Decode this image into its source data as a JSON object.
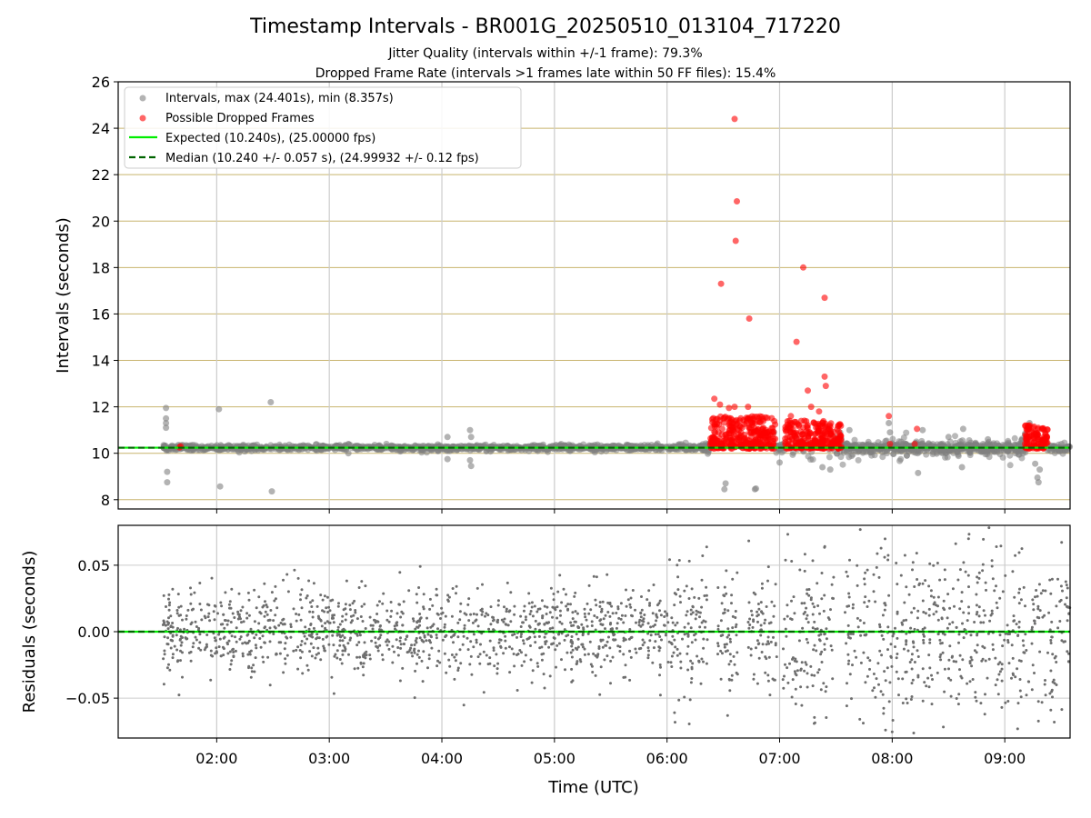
{
  "chart_data": {
    "type": "scatter",
    "title": "Timestamp Intervals - BR001G_20250510_013104_717220",
    "subtitle_lines": [
      "Jitter Quality (intervals within +/-1 frame): 79.3%",
      "Dropped Frame Rate (intervals >1 frames late within 50 FF files): 15.4%"
    ],
    "xlabel": "Time (UTC)",
    "x_range_hours": [
      1.125,
      9.58
    ],
    "x_ticks": [
      {
        "value": 2,
        "label": "02:00"
      },
      {
        "value": 3,
        "label": "03:00"
      },
      {
        "value": 4,
        "label": "04:00"
      },
      {
        "value": 5,
        "label": "05:00"
      },
      {
        "value": 6,
        "label": "06:00"
      },
      {
        "value": 7,
        "label": "07:00"
      },
      {
        "value": 8,
        "label": "08:00"
      },
      {
        "value": 9,
        "label": "09:00"
      }
    ],
    "top_panel": {
      "ylabel": "Intervals (seconds)",
      "ylim": [
        7.6,
        26
      ],
      "y_ticks": [
        {
          "value": 8,
          "label": "8"
        },
        {
          "value": 10,
          "label": "10"
        },
        {
          "value": 12,
          "label": "12"
        },
        {
          "value": 14,
          "label": "14"
        },
        {
          "value": 16,
          "label": "16"
        },
        {
          "value": 18,
          "label": "18"
        },
        {
          "value": 20,
          "label": "20"
        },
        {
          "value": 22,
          "label": "22"
        },
        {
          "value": 24,
          "label": "24"
        },
        {
          "value": 26,
          "label": "26"
        }
      ],
      "expected_interval": 10.24,
      "median_interval": 10.24,
      "legend": [
        {
          "label": "Intervals, max (24.401s), min (8.357s)",
          "marker": "circle",
          "color": "#808080"
        },
        {
          "label": "Possible Dropped Frames",
          "marker": "circle",
          "color": "#ff0000"
        },
        {
          "label": "Expected (10.240s), (25.00000 fps)",
          "marker": "line",
          "color": "#00ee00"
        },
        {
          "label": "Median (10.240 +/- 0.057 s), (24.99932 +/- 0.12 fps)",
          "marker": "dashed",
          "color": "#006400"
        }
      ],
      "gray_outliers": [
        {
          "x": 1.55,
          "y": 11.95
        },
        {
          "x": 1.55,
          "y": 11.5
        },
        {
          "x": 1.55,
          "y": 11.3
        },
        {
          "x": 1.55,
          "y": 11.1
        },
        {
          "x": 1.56,
          "y": 9.2
        },
        {
          "x": 1.56,
          "y": 8.75
        },
        {
          "x": 2.02,
          "y": 11.9
        },
        {
          "x": 2.03,
          "y": 8.57
        },
        {
          "x": 2.48,
          "y": 12.2
        },
        {
          "x": 2.49,
          "y": 8.36
        },
        {
          "x": 3.17,
          "y": 10.4
        },
        {
          "x": 3.17,
          "y": 10.0
        },
        {
          "x": 4.05,
          "y": 10.7
        },
        {
          "x": 4.05,
          "y": 9.75
        },
        {
          "x": 4.25,
          "y": 11.0
        },
        {
          "x": 4.26,
          "y": 10.7
        },
        {
          "x": 4.25,
          "y": 9.7
        },
        {
          "x": 4.26,
          "y": 9.45
        },
        {
          "x": 6.52,
          "y": 8.7
        },
        {
          "x": 6.51,
          "y": 8.45
        },
        {
          "x": 6.78,
          "y": 8.45
        },
        {
          "x": 6.79,
          "y": 8.48
        },
        {
          "x": 6.95,
          "y": 10.9
        },
        {
          "x": 7.0,
          "y": 9.6
        },
        {
          "x": 7.38,
          "y": 9.4
        },
        {
          "x": 7.45,
          "y": 9.3
        },
        {
          "x": 7.55,
          "y": 10.6
        },
        {
          "x": 7.62,
          "y": 11.0
        },
        {
          "x": 7.97,
          "y": 11.3
        },
        {
          "x": 7.98,
          "y": 10.9
        },
        {
          "x": 8.13,
          "y": 9.9
        },
        {
          "x": 8.23,
          "y": 9.15
        },
        {
          "x": 8.27,
          "y": 11.0
        },
        {
          "x": 8.5,
          "y": 10.7
        },
        {
          "x": 8.62,
          "y": 9.4
        },
        {
          "x": 8.63,
          "y": 11.05
        },
        {
          "x": 8.85,
          "y": 10.6
        },
        {
          "x": 9.22,
          "y": 11.3
        },
        {
          "x": 9.27,
          "y": 9.55
        },
        {
          "x": 9.29,
          "y": 8.95
        },
        {
          "x": 9.3,
          "y": 8.75
        },
        {
          "x": 9.31,
          "y": 9.3
        }
      ],
      "dropped_frames": [
        {
          "x": 1.67,
          "y": 10.25
        },
        {
          "x": 1.68,
          "y": 10.3
        },
        {
          "x": 6.48,
          "y": 17.3
        },
        {
          "x": 6.6,
          "y": 24.4
        },
        {
          "x": 6.61,
          "y": 19.15
        },
        {
          "x": 6.62,
          "y": 20.85
        },
        {
          "x": 6.73,
          "y": 15.8
        },
        {
          "x": 7.15,
          "y": 14.8
        },
        {
          "x": 7.21,
          "y": 18.0
        },
        {
          "x": 7.25,
          "y": 12.7
        },
        {
          "x": 7.4,
          "y": 16.7
        },
        {
          "x": 7.4,
          "y": 13.3
        },
        {
          "x": 7.41,
          "y": 12.9
        },
        {
          "x": 6.42,
          "y": 12.35
        },
        {
          "x": 6.47,
          "y": 12.1
        },
        {
          "x": 6.55,
          "y": 11.95
        },
        {
          "x": 6.6,
          "y": 12.0
        },
        {
          "x": 6.72,
          "y": 12.0
        },
        {
          "x": 7.28,
          "y": 12.0
        },
        {
          "x": 7.35,
          "y": 11.8
        },
        {
          "x": 7.1,
          "y": 11.6
        },
        {
          "x": 7.22,
          "y": 11.4
        },
        {
          "x": 7.97,
          "y": 11.6
        },
        {
          "x": 8.22,
          "y": 11.05
        },
        {
          "x": 9.22,
          "y": 11.2
        },
        {
          "x": 9.25,
          "y": 11.1
        },
        {
          "x": 7.98,
          "y": 10.4
        },
        {
          "x": 8.2,
          "y": 10.4
        }
      ],
      "dropped_clusters": [
        {
          "x_start": 6.38,
          "x_end": 6.97,
          "y_min": 10.2,
          "y_max": 11.6
        },
        {
          "x_start": 7.05,
          "x_end": 7.55,
          "y_min": 10.2,
          "y_max": 11.4
        },
        {
          "x_start": 9.18,
          "x_end": 9.38,
          "y_min": 10.2,
          "y_max": 11.2
        }
      ],
      "median_band_noise": 0.06
    },
    "bottom_panel": {
      "ylabel": "Residuals (seconds)",
      "ylim": [
        -0.08,
        0.08
      ],
      "y_ticks": [
        {
          "value": -0.05,
          "label": "−0.05"
        },
        {
          "value": 0,
          "label": "0.00"
        },
        {
          "value": 0.05,
          "label": "0.05"
        }
      ],
      "residual_points": 2100
    },
    "colors": {
      "gray": "#808080",
      "red": "#ff0000",
      "expected": "#00ee00",
      "median": "#006400",
      "hgrid_top": "#c8b46e",
      "grid": "#cccccc"
    }
  }
}
